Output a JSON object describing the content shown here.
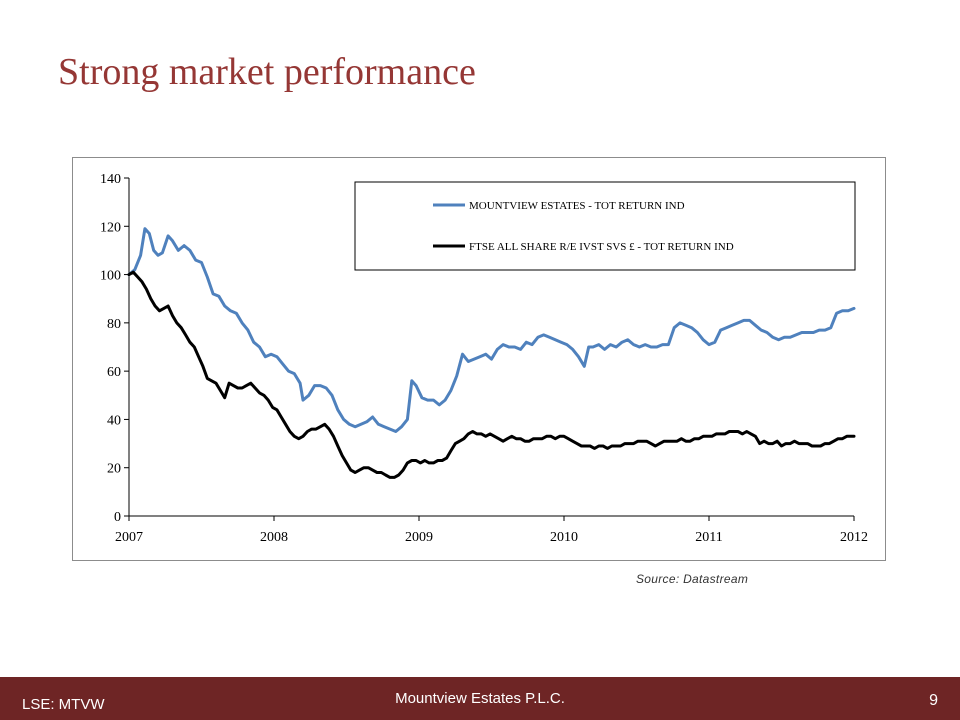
{
  "slide": {
    "title": "Strong market performance",
    "source": "Source: Datastream",
    "footer_left": "LSE: MTVW",
    "footer_center": "Mountview Estates P.L.C.",
    "page_number": "9"
  },
  "colors": {
    "title": "#953735",
    "footer": "#6e2525",
    "series_mountview": "#4f81bd",
    "series_ftse": "#000000"
  },
  "chart_data": {
    "type": "line",
    "title": "",
    "xlabel": "",
    "ylabel": "",
    "xlim": [
      2007,
      2012
    ],
    "ylim": [
      0,
      140
    ],
    "x_ticks": [
      "2007",
      "2008",
      "2009",
      "2010",
      "2011",
      "2012"
    ],
    "y_ticks": [
      "0",
      "20",
      "40",
      "60",
      "80",
      "100",
      "120",
      "140"
    ],
    "grid": false,
    "legend_position": "top-right",
    "series": [
      {
        "name": "MOUNTVIEW ESTATES - TOT RETURN IND",
        "color": "#4f81bd",
        "points": [
          [
            2007.0,
            100
          ],
          [
            2007.04,
            102
          ],
          [
            2007.08,
            108
          ],
          [
            2007.11,
            119
          ],
          [
            2007.14,
            117
          ],
          [
            2007.17,
            110
          ],
          [
            2007.2,
            108
          ],
          [
            2007.23,
            109
          ],
          [
            2007.27,
            116
          ],
          [
            2007.3,
            114
          ],
          [
            2007.34,
            110
          ],
          [
            2007.38,
            112
          ],
          [
            2007.42,
            110
          ],
          [
            2007.46,
            106
          ],
          [
            2007.5,
            105
          ],
          [
            2007.54,
            99
          ],
          [
            2007.58,
            92
          ],
          [
            2007.62,
            91
          ],
          [
            2007.66,
            87
          ],
          [
            2007.7,
            85
          ],
          [
            2007.74,
            84
          ],
          [
            2007.78,
            80
          ],
          [
            2007.82,
            77
          ],
          [
            2007.86,
            72
          ],
          [
            2007.9,
            70
          ],
          [
            2007.94,
            66
          ],
          [
            2007.98,
            67
          ],
          [
            2008.02,
            66
          ],
          [
            2008.06,
            63
          ],
          [
            2008.1,
            60
          ],
          [
            2008.14,
            59
          ],
          [
            2008.18,
            55
          ],
          [
            2008.2,
            48
          ],
          [
            2008.24,
            50
          ],
          [
            2008.28,
            54
          ],
          [
            2008.32,
            54
          ],
          [
            2008.36,
            53
          ],
          [
            2008.4,
            50
          ],
          [
            2008.44,
            44
          ],
          [
            2008.48,
            40
          ],
          [
            2008.52,
            38
          ],
          [
            2008.56,
            37
          ],
          [
            2008.6,
            38
          ],
          [
            2008.64,
            39
          ],
          [
            2008.68,
            41
          ],
          [
            2008.72,
            38
          ],
          [
            2008.76,
            37
          ],
          [
            2008.8,
            36
          ],
          [
            2008.84,
            35
          ],
          [
            2008.88,
            37
          ],
          [
            2008.92,
            40
          ],
          [
            2008.95,
            56
          ],
          [
            2008.98,
            54
          ],
          [
            2009.02,
            49
          ],
          [
            2009.06,
            48
          ],
          [
            2009.1,
            48
          ],
          [
            2009.14,
            46
          ],
          [
            2009.18,
            48
          ],
          [
            2009.22,
            52
          ],
          [
            2009.26,
            58
          ],
          [
            2009.3,
            67
          ],
          [
            2009.34,
            64
          ],
          [
            2009.38,
            65
          ],
          [
            2009.42,
            66
          ],
          [
            2009.46,
            67
          ],
          [
            2009.5,
            65
          ],
          [
            2009.54,
            69
          ],
          [
            2009.58,
            71
          ],
          [
            2009.62,
            70
          ],
          [
            2009.66,
            70
          ],
          [
            2009.7,
            69
          ],
          [
            2009.74,
            72
          ],
          [
            2009.78,
            71
          ],
          [
            2009.82,
            74
          ],
          [
            2009.86,
            75
          ],
          [
            2009.9,
            74
          ],
          [
            2009.94,
            73
          ],
          [
            2009.98,
            72
          ],
          [
            2010.02,
            71
          ],
          [
            2010.06,
            69
          ],
          [
            2010.1,
            66
          ],
          [
            2010.14,
            62
          ],
          [
            2010.17,
            70
          ],
          [
            2010.2,
            70
          ],
          [
            2010.24,
            71
          ],
          [
            2010.28,
            69
          ],
          [
            2010.32,
            71
          ],
          [
            2010.36,
            70
          ],
          [
            2010.4,
            72
          ],
          [
            2010.44,
            73
          ],
          [
            2010.48,
            71
          ],
          [
            2010.52,
            70
          ],
          [
            2010.56,
            71
          ],
          [
            2010.6,
            70
          ],
          [
            2010.64,
            70
          ],
          [
            2010.68,
            71
          ],
          [
            2010.72,
            71
          ],
          [
            2010.76,
            78
          ],
          [
            2010.8,
            80
          ],
          [
            2010.84,
            79
          ],
          [
            2010.88,
            78
          ],
          [
            2010.92,
            76
          ],
          [
            2010.96,
            73
          ],
          [
            2011.0,
            71
          ],
          [
            2011.04,
            72
          ],
          [
            2011.08,
            77
          ],
          [
            2011.12,
            78
          ],
          [
            2011.16,
            79
          ],
          [
            2011.2,
            80
          ],
          [
            2011.24,
            81
          ],
          [
            2011.28,
            81
          ],
          [
            2011.32,
            79
          ],
          [
            2011.36,
            77
          ],
          [
            2011.4,
            76
          ],
          [
            2011.44,
            74
          ],
          [
            2011.48,
            73
          ],
          [
            2011.52,
            74
          ],
          [
            2011.56,
            74
          ],
          [
            2011.6,
            75
          ],
          [
            2011.64,
            76
          ],
          [
            2011.68,
            76
          ],
          [
            2011.72,
            76
          ],
          [
            2011.76,
            77
          ],
          [
            2011.8,
            77
          ],
          [
            2011.84,
            78
          ],
          [
            2011.88,
            84
          ],
          [
            2011.92,
            85
          ],
          [
            2011.96,
            85
          ],
          [
            2012.0,
            86
          ]
        ]
      },
      {
        "name": "FTSE ALL SHARE R/E IVST SVS £ - TOT RETURN IND",
        "color": "#000000",
        "points": [
          [
            2007.0,
            100
          ],
          [
            2007.03,
            101
          ],
          [
            2007.06,
            99
          ],
          [
            2007.09,
            97
          ],
          [
            2007.12,
            94
          ],
          [
            2007.15,
            90
          ],
          [
            2007.18,
            87
          ],
          [
            2007.21,
            85
          ],
          [
            2007.24,
            86
          ],
          [
            2007.27,
            87
          ],
          [
            2007.3,
            83
          ],
          [
            2007.33,
            80
          ],
          [
            2007.36,
            78
          ],
          [
            2007.39,
            75
          ],
          [
            2007.42,
            72
          ],
          [
            2007.45,
            70
          ],
          [
            2007.48,
            66
          ],
          [
            2007.51,
            62
          ],
          [
            2007.54,
            57
          ],
          [
            2007.57,
            56
          ],
          [
            2007.6,
            55
          ],
          [
            2007.63,
            52
          ],
          [
            2007.66,
            49
          ],
          [
            2007.69,
            55
          ],
          [
            2007.72,
            54
          ],
          [
            2007.75,
            53
          ],
          [
            2007.78,
            53
          ],
          [
            2007.81,
            54
          ],
          [
            2007.84,
            55
          ],
          [
            2007.87,
            53
          ],
          [
            2007.9,
            51
          ],
          [
            2007.93,
            50
          ],
          [
            2007.96,
            48
          ],
          [
            2007.99,
            45
          ],
          [
            2008.02,
            44
          ],
          [
            2008.05,
            41
          ],
          [
            2008.08,
            38
          ],
          [
            2008.11,
            35
          ],
          [
            2008.14,
            33
          ],
          [
            2008.17,
            32
          ],
          [
            2008.2,
            33
          ],
          [
            2008.23,
            35
          ],
          [
            2008.26,
            36
          ],
          [
            2008.29,
            36
          ],
          [
            2008.32,
            37
          ],
          [
            2008.35,
            38
          ],
          [
            2008.38,
            36
          ],
          [
            2008.41,
            33
          ],
          [
            2008.44,
            29
          ],
          [
            2008.47,
            25
          ],
          [
            2008.5,
            22
          ],
          [
            2008.53,
            19
          ],
          [
            2008.56,
            18
          ],
          [
            2008.59,
            19
          ],
          [
            2008.62,
            20
          ],
          [
            2008.65,
            20
          ],
          [
            2008.68,
            19
          ],
          [
            2008.71,
            18
          ],
          [
            2008.74,
            18
          ],
          [
            2008.77,
            17
          ],
          [
            2008.8,
            16
          ],
          [
            2008.83,
            16
          ],
          [
            2008.86,
            17
          ],
          [
            2008.89,
            19
          ],
          [
            2008.92,
            22
          ],
          [
            2008.95,
            23
          ],
          [
            2008.98,
            23
          ],
          [
            2009.01,
            22
          ],
          [
            2009.04,
            23
          ],
          [
            2009.07,
            22
          ],
          [
            2009.1,
            22
          ],
          [
            2009.13,
            23
          ],
          [
            2009.16,
            23
          ],
          [
            2009.19,
            24
          ],
          [
            2009.22,
            27
          ],
          [
            2009.25,
            30
          ],
          [
            2009.28,
            31
          ],
          [
            2009.31,
            32
          ],
          [
            2009.34,
            34
          ],
          [
            2009.37,
            35
          ],
          [
            2009.4,
            34
          ],
          [
            2009.43,
            34
          ],
          [
            2009.46,
            33
          ],
          [
            2009.49,
            34
          ],
          [
            2009.52,
            33
          ],
          [
            2009.55,
            32
          ],
          [
            2009.58,
            31
          ],
          [
            2009.61,
            32
          ],
          [
            2009.64,
            33
          ],
          [
            2009.67,
            32
          ],
          [
            2009.7,
            32
          ],
          [
            2009.73,
            31
          ],
          [
            2009.76,
            31
          ],
          [
            2009.79,
            32
          ],
          [
            2009.82,
            32
          ],
          [
            2009.85,
            32
          ],
          [
            2009.88,
            33
          ],
          [
            2009.91,
            33
          ],
          [
            2009.94,
            32
          ],
          [
            2009.97,
            33
          ],
          [
            2010.0,
            33
          ],
          [
            2010.03,
            32
          ],
          [
            2010.06,
            31
          ],
          [
            2010.09,
            30
          ],
          [
            2010.12,
            29
          ],
          [
            2010.15,
            29
          ],
          [
            2010.18,
            29
          ],
          [
            2010.21,
            28
          ],
          [
            2010.24,
            29
          ],
          [
            2010.27,
            29
          ],
          [
            2010.3,
            28
          ],
          [
            2010.33,
            29
          ],
          [
            2010.36,
            29
          ],
          [
            2010.39,
            29
          ],
          [
            2010.42,
            30
          ],
          [
            2010.45,
            30
          ],
          [
            2010.48,
            30
          ],
          [
            2010.51,
            31
          ],
          [
            2010.54,
            31
          ],
          [
            2010.57,
            31
          ],
          [
            2010.6,
            30
          ],
          [
            2010.63,
            29
          ],
          [
            2010.66,
            30
          ],
          [
            2010.69,
            31
          ],
          [
            2010.72,
            31
          ],
          [
            2010.75,
            31
          ],
          [
            2010.78,
            31
          ],
          [
            2010.81,
            32
          ],
          [
            2010.84,
            31
          ],
          [
            2010.87,
            31
          ],
          [
            2010.9,
            32
          ],
          [
            2010.93,
            32
          ],
          [
            2010.96,
            33
          ],
          [
            2010.99,
            33
          ],
          [
            2011.02,
            33
          ],
          [
            2011.05,
            34
          ],
          [
            2011.08,
            34
          ],
          [
            2011.11,
            34
          ],
          [
            2011.14,
            35
          ],
          [
            2011.17,
            35
          ],
          [
            2011.2,
            35
          ],
          [
            2011.23,
            34
          ],
          [
            2011.26,
            35
          ],
          [
            2011.29,
            34
          ],
          [
            2011.32,
            33
          ],
          [
            2011.35,
            30
          ],
          [
            2011.38,
            31
          ],
          [
            2011.41,
            30
          ],
          [
            2011.44,
            30
          ],
          [
            2011.47,
            31
          ],
          [
            2011.5,
            29
          ],
          [
            2011.53,
            30
          ],
          [
            2011.56,
            30
          ],
          [
            2011.59,
            31
          ],
          [
            2011.62,
            30
          ],
          [
            2011.65,
            30
          ],
          [
            2011.68,
            30
          ],
          [
            2011.71,
            29
          ],
          [
            2011.74,
            29
          ],
          [
            2011.77,
            29
          ],
          [
            2011.8,
            30
          ],
          [
            2011.83,
            30
          ],
          [
            2011.86,
            31
          ],
          [
            2011.89,
            32
          ],
          [
            2011.92,
            32
          ],
          [
            2011.95,
            33
          ],
          [
            2011.98,
            33
          ],
          [
            2012.0,
            33
          ]
        ]
      }
    ]
  }
}
